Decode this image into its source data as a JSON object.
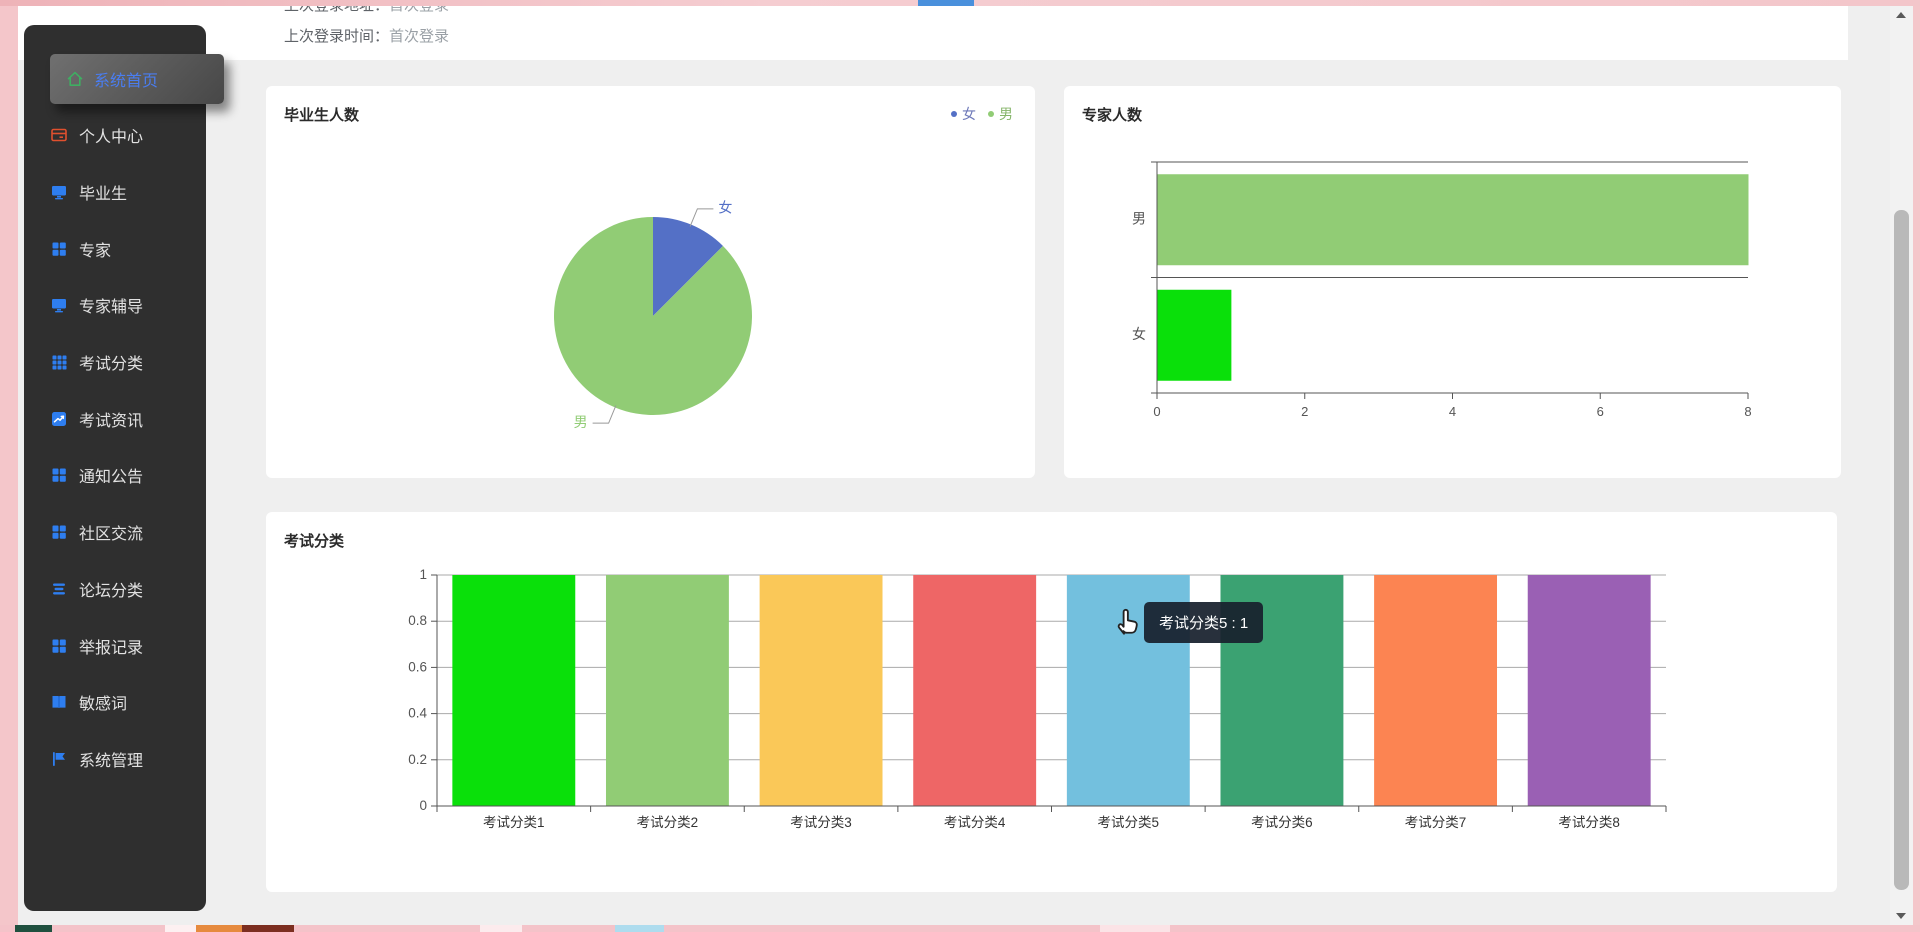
{
  "login": {
    "address_label": "上次登录地址：",
    "address_value": "首次登录",
    "time_label": "上次登录时间：",
    "time_value": "首次登录"
  },
  "sidebar": {
    "items": [
      {
        "label": "系统首页",
        "icon": "home-icon",
        "active": true
      },
      {
        "label": "个人中心",
        "icon": "idcard-icon"
      },
      {
        "label": "毕业生",
        "icon": "monitor-icon"
      },
      {
        "label": "专家",
        "icon": "grid4-icon"
      },
      {
        "label": "专家辅导",
        "icon": "monitor-icon"
      },
      {
        "label": "考试分类",
        "icon": "grid9-icon"
      },
      {
        "label": "考试资讯",
        "icon": "trend-icon"
      },
      {
        "label": "通知公告",
        "icon": "grid4-icon"
      },
      {
        "label": "社区交流",
        "icon": "grid4-icon"
      },
      {
        "label": "论坛分类",
        "icon": "listlines-icon"
      },
      {
        "label": "举报记录",
        "icon": "grid4-icon"
      },
      {
        "label": "敏感词",
        "icon": "book-icon"
      },
      {
        "label": "系统管理",
        "icon": "flag-icon"
      }
    ]
  },
  "cards": {
    "graduates": {
      "title": "毕业生人数"
    },
    "experts": {
      "title": "专家人数"
    },
    "exams": {
      "title": "考试分类"
    }
  },
  "tooltip": {
    "text": "考试分类5 : 1"
  },
  "chart_data": [
    {
      "type": "pie",
      "title": "毕业生人数",
      "legend": {
        "position": "top-right",
        "items": [
          "女",
          "男"
        ]
      },
      "series": [
        {
          "name": "女",
          "value": 1,
          "color": "#5470c6"
        },
        {
          "name": "男",
          "value": 7,
          "color": "#91cc75"
        }
      ]
    },
    {
      "type": "bar",
      "orientation": "horizontal",
      "title": "专家人数",
      "categories": [
        "男",
        "女"
      ],
      "values": [
        8,
        1
      ],
      "colors": [
        "#91cc75",
        "#0ae00a"
      ],
      "xlim": [
        0,
        8
      ],
      "xticks": [
        0,
        2,
        4,
        6,
        8
      ],
      "grid": true
    },
    {
      "type": "bar",
      "orientation": "vertical",
      "title": "考试分类",
      "categories": [
        "考试分类1",
        "考试分类2",
        "考试分类3",
        "考试分类4",
        "考试分类5",
        "考试分类6",
        "考试分类7",
        "考试分类8"
      ],
      "values": [
        1,
        1,
        1,
        1,
        1,
        1,
        1,
        1
      ],
      "colors": [
        "#0ae00a",
        "#91cc75",
        "#fac858",
        "#ee6666",
        "#73c0de",
        "#3ba272",
        "#fc8452",
        "#9a60b4"
      ],
      "ylim": [
        0,
        1
      ],
      "yticks": [
        0,
        0.2,
        0.4,
        0.6,
        0.8,
        1
      ],
      "grid": true,
      "tooltip": {
        "text": "考试分类5 : 1",
        "category_index": 4
      }
    }
  ]
}
